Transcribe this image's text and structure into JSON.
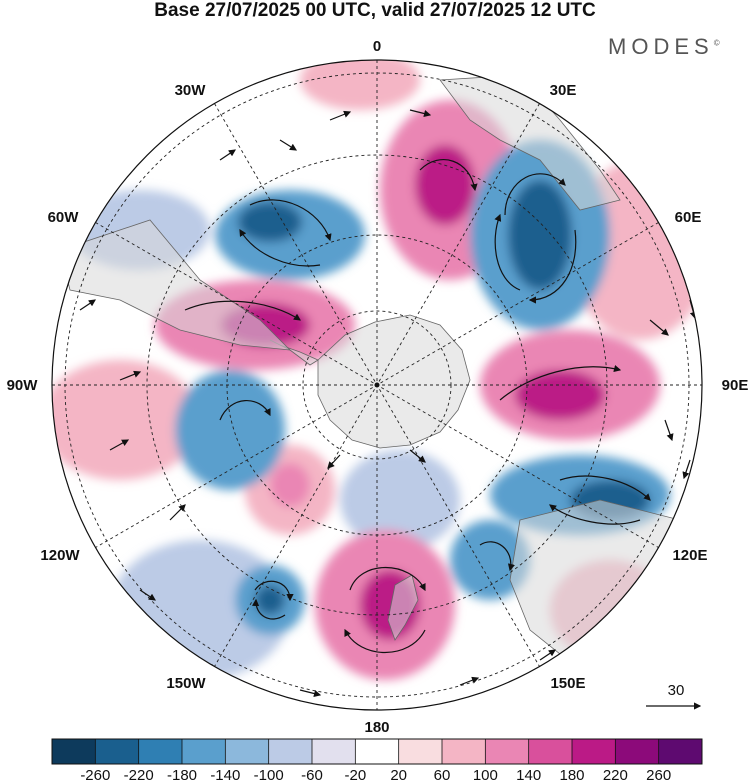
{
  "title": "Base 27/07/2025 00 UTC, valid 27/07/2025 12 UTC",
  "brand": {
    "name": "MODES",
    "mark": "©"
  },
  "map": {
    "projection": "south-polar-stereographic",
    "longitude_labels": {
      "top": "0",
      "top_right": "30E",
      "right_upper": "60E",
      "right": "90E",
      "right_lower": "120E",
      "bottom_right": "150E",
      "bottom": "180",
      "bottom_left": "150W",
      "left_lower": "120W",
      "left": "90W",
      "left_upper": "60W",
      "top_left": "30W"
    },
    "reference_vector": {
      "label": "30"
    }
  },
  "colorbar": {
    "ticks": [
      "-260",
      "-220",
      "-180",
      "-140",
      "-100",
      "-60",
      "-20",
      "20",
      "60",
      "100",
      "140",
      "180",
      "220",
      "260"
    ],
    "colors": [
      "#0d3a5c",
      "#1a5f8e",
      "#2f7fb3",
      "#5a9fcd",
      "#8cb8dc",
      "#bccbe6",
      "#e2e0ee",
      "#ffffff",
      "#f9dde0",
      "#f4b5c5",
      "#ea86b4",
      "#d9509c",
      "#bb1a86",
      "#8c0a7a",
      "#5e0a70"
    ]
  },
  "palette": {
    "land": "#d9d9d9",
    "neg_strong": "#1a5f8e",
    "neg_mid": "#5a9fcd",
    "neg_light": "#bccbe6",
    "pos_light": "#f4b5c5",
    "pos_mid": "#ea86b4",
    "pos_strong": "#bb1a86"
  }
}
